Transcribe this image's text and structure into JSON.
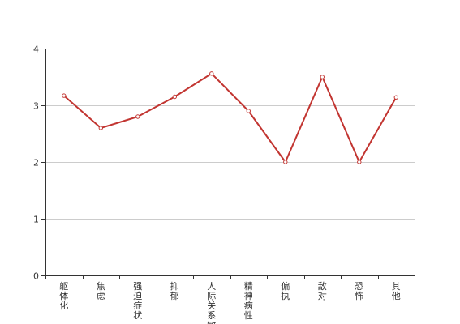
{
  "chart_data": {
    "type": "line",
    "title": "",
    "xlabel": "",
    "ylabel": "",
    "categories": [
      "躯体化",
      "焦虑",
      "强迫症状",
      "抑郁",
      "人际关系敏感",
      "精神病性",
      "偏执",
      "敌对",
      "恐怖",
      "其他"
    ],
    "series": [
      {
        "values": [
          3.17,
          2.6,
          2.8,
          3.15,
          3.56,
          2.9,
          2.0,
          3.5,
          2.0,
          3.14
        ]
      }
    ],
    "ylim": [
      0,
      4
    ],
    "yticks": [
      "0",
      "1",
      "2",
      "3",
      "4"
    ],
    "grid": true,
    "legend": "none",
    "colors": {
      "line": "#c23531",
      "grid": "#cccccc",
      "axis": "#333333",
      "marker_fill": "#ffffff"
    }
  }
}
